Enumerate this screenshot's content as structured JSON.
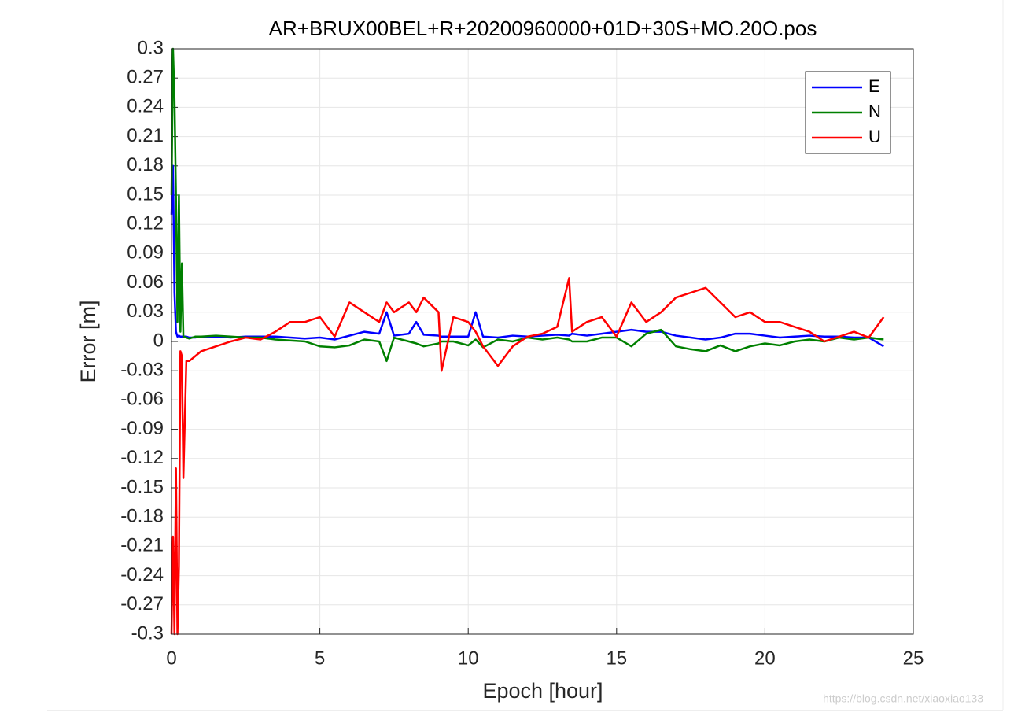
{
  "chart_data": {
    "type": "line",
    "title": "AR+BRUX00BEL+R+20200960000+01D+30S+MO.20O.pos",
    "xlabel": "Epoch [hour]",
    "ylabel": "Error [m]",
    "watermark": "https://blog.csdn.net/xiaoxiao133",
    "xlim": [
      0,
      25
    ],
    "xticks": [
      0,
      5,
      10,
      15,
      20,
      25
    ],
    "ylim": [
      -0.3,
      0.3
    ],
    "yticks": [
      -0.3,
      -0.27,
      -0.24,
      -0.21,
      -0.18,
      -0.15,
      -0.12,
      -0.09,
      -0.06,
      -0.03,
      0,
      0.03,
      0.06,
      0.09,
      0.12,
      0.15,
      0.18,
      0.21,
      0.24,
      0.27,
      0.3
    ],
    "grid": true,
    "legend": "top-right",
    "x": [
      0,
      0.05,
      0.1,
      0.15,
      0.2,
      0.25,
      0.3,
      0.35,
      0.4,
      0.5,
      0.6,
      0.8,
      1,
      1.5,
      2,
      2.5,
      3,
      3.5,
      4,
      4.5,
      5,
      5.5,
      6,
      6.5,
      7,
      7.25,
      7.5,
      8,
      8.25,
      8.5,
      9,
      9.1,
      9.5,
      10,
      10.25,
      10.5,
      11,
      11.5,
      12,
      12.5,
      13,
      13.4,
      13.5,
      14,
      14.5,
      15,
      15.5,
      16,
      16.5,
      17,
      17.5,
      18,
      18.5,
      19,
      19.5,
      20,
      20.5,
      21,
      21.5,
      22,
      22.5,
      23,
      23.5,
      24
    ],
    "series": [
      {
        "name": "E",
        "color": "#0000ff",
        "values": [
          0.13,
          0.18,
          0.05,
          0.01,
          0.005,
          0.006,
          0.005,
          0.005,
          0.005,
          0.005,
          0.004,
          0.004,
          0.005,
          0.005,
          0.004,
          0.005,
          0.005,
          0.005,
          0.004,
          0.003,
          0.004,
          0.002,
          0.006,
          0.01,
          0.008,
          0.03,
          0.006,
          0.008,
          0.02,
          0.007,
          0.006,
          0.005,
          0.005,
          0.005,
          0.03,
          0.005,
          0.004,
          0.006,
          0.005,
          0.006,
          0.007,
          0.006,
          0.008,
          0.006,
          0.008,
          0.01,
          0.012,
          0.01,
          0.01,
          0.006,
          0.004,
          0.002,
          0.004,
          0.008,
          0.008,
          0.006,
          0.004,
          0.005,
          0.006,
          0.005,
          0.005,
          0.004,
          0.004,
          -0.005
        ]
      },
      {
        "name": "N",
        "color": "#008000",
        "values": [
          0.15,
          0.3,
          0.25,
          0.15,
          0.02,
          0.15,
          0.01,
          0.08,
          0.005,
          0.004,
          0.003,
          0.005,
          0.005,
          0.006,
          0.005,
          0.004,
          0.004,
          0.002,
          0.001,
          0,
          -0.005,
          -0.006,
          -0.004,
          0.002,
          0,
          -0.02,
          0.004,
          0,
          -0.002,
          -0.005,
          -0.002,
          0,
          0,
          -0.004,
          0.002,
          -0.006,
          0.002,
          0,
          0.004,
          0.002,
          0.004,
          0.002,
          0,
          0,
          0.004,
          0.004,
          -0.005,
          0.008,
          0.012,
          -0.005,
          -0.008,
          -0.01,
          -0.004,
          -0.01,
          -0.005,
          -0.002,
          -0.004,
          0,
          0.002,
          0,
          0.004,
          0.002,
          0.004,
          0.002
        ]
      },
      {
        "name": "U",
        "color": "#ff0000",
        "values": [
          -0.3,
          -0.2,
          -0.3,
          -0.13,
          -0.3,
          -0.23,
          -0.01,
          -0.015,
          -0.14,
          -0.02,
          -0.02,
          -0.015,
          -0.01,
          -0.005,
          0,
          0.004,
          0.002,
          0.01,
          0.02,
          0.02,
          0.025,
          0.005,
          0.04,
          0.03,
          0.02,
          0.04,
          0.03,
          0.04,
          0.03,
          0.045,
          0.03,
          -0.03,
          0.025,
          0.02,
          0.01,
          -0.005,
          -0.025,
          -0.005,
          0.005,
          0.008,
          0.015,
          0.065,
          0.01,
          0.02,
          0.025,
          0.005,
          0.04,
          0.02,
          0.03,
          0.045,
          0.05,
          0.055,
          0.04,
          0.025,
          0.03,
          0.02,
          0.02,
          0.015,
          0.01,
          0,
          0.005,
          0.01,
          0.004,
          0.025
        ]
      }
    ]
  }
}
